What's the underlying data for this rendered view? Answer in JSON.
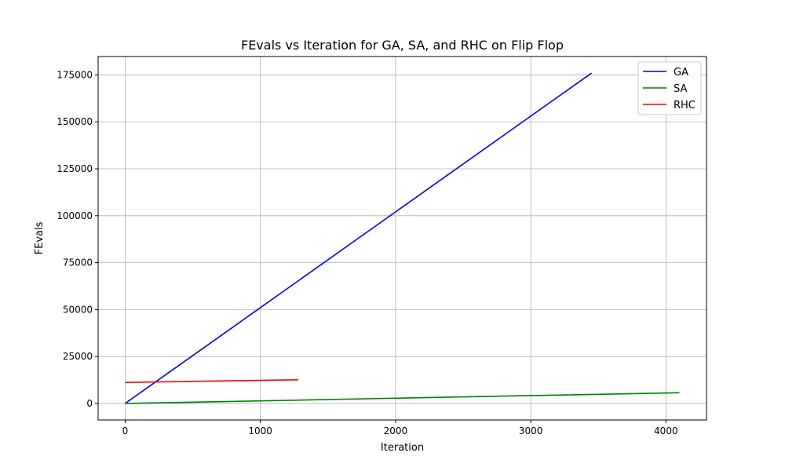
{
  "chart_data": {
    "type": "line",
    "title": "FEvals vs Iteration for GA, SA, and RHC on Flip Flop",
    "xlabel": "Iteration",
    "ylabel": "FEvals",
    "xlim": [
      -200,
      4300
    ],
    "ylim": [
      -8800,
      184800
    ],
    "xticks": [
      0,
      1000,
      2000,
      3000,
      4000
    ],
    "yticks": [
      0,
      25000,
      50000,
      75000,
      100000,
      125000,
      150000,
      175000
    ],
    "grid": true,
    "legend_position": "top-right",
    "series": [
      {
        "name": "GA",
        "color": "#0000ff",
        "x": [
          0,
          3450
        ],
        "y": [
          0,
          176000
        ]
      },
      {
        "name": "SA",
        "color": "#008000",
        "x": [
          0,
          1000,
          2000,
          3000,
          4100
        ],
        "y": [
          0,
          1350,
          2800,
          4200,
          5700
        ]
      },
      {
        "name": "RHC",
        "color": "#ff0000",
        "x": [
          0,
          1280
        ],
        "y": [
          11200,
          12600
        ]
      }
    ]
  }
}
